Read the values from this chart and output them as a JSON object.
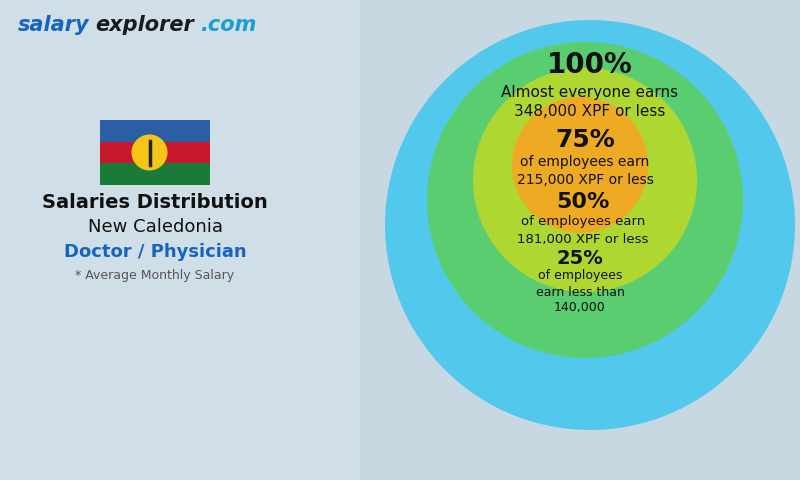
{
  "title_salary": "salary",
  "title_explorer": "explorer",
  "title_dot_com": ".com",
  "title_main": "Salaries Distribution",
  "title_country": "New Caledonia",
  "title_job": "Doctor / Physician",
  "title_note": "* Average Monthly Salary",
  "pct_100": "100%",
  "lbl_100_1": "Almost everyone earns",
  "lbl_100_2": "348,000 XPF or less",
  "pct_75": "75%",
  "lbl_75_1": "of employees earn",
  "lbl_75_2": "215,000 XPF or less",
  "pct_50": "50%",
  "lbl_50_1": "of employees earn",
  "lbl_50_2": "181,000 XPF or less",
  "pct_25": "25%",
  "lbl_25_1": "of employees",
  "lbl_25_2": "earn less than",
  "lbl_25_3": "140,000",
  "color_100": "#3ec6f0",
  "color_75": "#5dce60",
  "color_50": "#b8d92a",
  "color_25": "#f5a623",
  "color_salary": "#1565c0",
  "color_explorer": "#1a1a1a",
  "color_dotcom": "#1a9ed4",
  "color_job": "#1565c0",
  "color_note": "#555555",
  "bg_left": "#ccd8e0",
  "bg_right": "#b8c8d4",
  "flag_blue": "#2b5fa5",
  "flag_red": "#c8192c",
  "flag_green": "#1a7a3a",
  "flag_yellow": "#f5c518"
}
